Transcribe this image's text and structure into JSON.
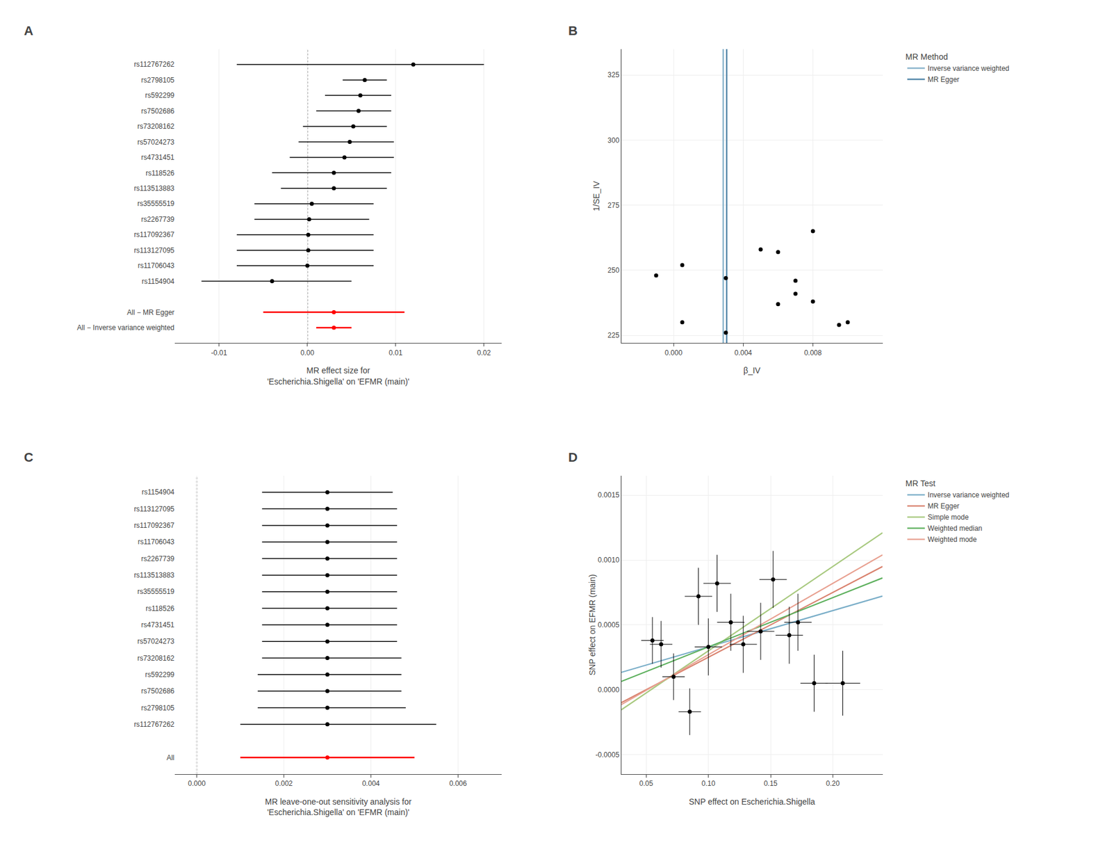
{
  "chart_data": [
    {
      "type": "forest",
      "title": "A",
      "xlabel": "MR effect size for\n'Escherichia.Shigella' on 'EFMR (main)'",
      "series": [
        {
          "categories": [
            "rs112767262",
            "rs2798105",
            "rs592299",
            "rs7502686",
            "rs73208162",
            "rs57024273",
            "rs4731451",
            "rs118526",
            "rs113513883",
            "rs35555519",
            "rs2267739",
            "rs117092367",
            "rs113127095",
            "rs11706043",
            "rs1154904"
          ],
          "values": [
            0.012,
            0.0065,
            0.006,
            0.0058,
            0.0052,
            0.0048,
            0.0042,
            0.003,
            0.003,
            0.0005,
            0.0002,
            0.0001,
            0.0001,
            0.0,
            -0.004
          ],
          "ci_low": [
            -0.008,
            0.004,
            0.002,
            0.001,
            -0.0005,
            -0.001,
            -0.002,
            -0.004,
            -0.003,
            -0.006,
            -0.006,
            -0.008,
            -0.008,
            -0.008,
            -0.012
          ],
          "ci_high": [
            0.02,
            0.009,
            0.0095,
            0.0095,
            0.009,
            0.0098,
            0.0098,
            0.0095,
            0.009,
            0.0075,
            0.007,
            0.0075,
            0.0075,
            0.0075,
            0.005
          ],
          "color": "black"
        },
        {
          "categories": [
            "All − MR Egger",
            "All − Inverse variance weighted"
          ],
          "values": [
            0.003,
            0.003
          ],
          "ci_low": [
            -0.005,
            0.001
          ],
          "ci_high": [
            0.011,
            0.005
          ],
          "color": "red"
        }
      ],
      "reference_x": 0,
      "xlim": [
        -0.015,
        0.022
      ],
      "xticks": [
        -0.01,
        {
          "value": 0,
          "label": "0.00"
        },
        0.01,
        0.02
      ],
      "grid": true
    },
    {
      "type": "scatter",
      "title": "B",
      "xlabel": "β_IV",
      "ylabel": "1/SE_IV",
      "x": [
        -0.001,
        0.0005,
        0.0005,
        0.003,
        0.003,
        0.005,
        0.006,
        0.006,
        0.007,
        0.007,
        0.008,
        0.008,
        0.0095,
        0.01
      ],
      "values": [
        248,
        252,
        230,
        247,
        226,
        258,
        257,
        237,
        246,
        241,
        265,
        238,
        229,
        230
      ],
      "color": "black",
      "series": [
        {
          "name": "Inverse variance weighted",
          "type": "vline",
          "x": 0.00285,
          "color": "#8ab4cc"
        },
        {
          "name": "MR Egger",
          "type": "vline",
          "x": 0.00305,
          "color": "#5588aa"
        }
      ],
      "legend_title": "MR Method",
      "legend": "right",
      "xlim": [
        -0.003,
        0.012
      ],
      "ylim": [
        222,
        335
      ],
      "xticks": [
        {
          "value": 0,
          "label": "0.000"
        },
        0.004,
        0.008
      ],
      "yticks": [
        225,
        250,
        275,
        300,
        325
      ],
      "grid": true
    },
    {
      "type": "forest",
      "title": "C",
      "xlabel": "MR leave-one-out sensitivity analysis for\n'Escherichia.Shigella' on 'EFMR (main)'",
      "series": [
        {
          "categories": [
            "rs1154904",
            "rs113127095",
            "rs117092367",
            "rs11706043",
            "rs2267739",
            "rs113513883",
            "rs35555519",
            "rs118526",
            "rs4731451",
            "rs57024273",
            "rs73208162",
            "rs592299",
            "rs7502686",
            "rs2798105",
            "rs112767262"
          ],
          "values": [
            0.003,
            0.003,
            0.003,
            0.003,
            0.003,
            0.003,
            0.003,
            0.003,
            0.003,
            0.003,
            0.003,
            0.003,
            0.003,
            0.003,
            0.003
          ],
          "ci_low": [
            0.0015,
            0.0015,
            0.0015,
            0.0015,
            0.0015,
            0.0015,
            0.0015,
            0.0015,
            0.0015,
            0.0015,
            0.0015,
            0.0014,
            0.0014,
            0.0014,
            0.001
          ],
          "ci_high": [
            0.0045,
            0.0046,
            0.0046,
            0.0046,
            0.0046,
            0.0046,
            0.0046,
            0.0046,
            0.0046,
            0.0046,
            0.0047,
            0.0047,
            0.0047,
            0.0048,
            0.0055
          ],
          "color": "black"
        },
        {
          "categories": [
            "All"
          ],
          "values": [
            0.003
          ],
          "ci_low": [
            0.001
          ],
          "ci_high": [
            0.005
          ],
          "color": "red"
        }
      ],
      "reference_x": 0,
      "xlim": [
        -0.0005,
        0.007
      ],
      "xticks": [
        {
          "value": 0,
          "label": "0.000"
        },
        0.002,
        0.004,
        0.006
      ],
      "grid": true
    },
    {
      "type": "scatter",
      "title": "D",
      "xlabel": "SNP effect on Escherichia.Shigella",
      "ylabel": "SNP effect on EFMR (main)",
      "x": [
        0.055,
        0.062,
        0.072,
        0.085,
        0.092,
        0.1,
        0.107,
        0.118,
        0.128,
        0.142,
        0.152,
        0.165,
        0.172,
        0.185,
        0.208
      ],
      "values": [
        0.00038,
        0.00035,
        0.0001,
        -0.00017,
        0.00072,
        0.00033,
        0.00082,
        0.00052,
        0.00035,
        0.00045,
        0.00085,
        0.00042,
        0.00052,
        5e-05,
        5e-05
      ],
      "x_err": [
        0.009,
        0.009,
        0.009,
        0.009,
        0.011,
        0.011,
        0.011,
        0.011,
        0.011,
        0.011,
        0.011,
        0.011,
        0.011,
        0.011,
        0.014
      ],
      "y_err": [
        0.00018,
        0.00018,
        0.00018,
        0.00018,
        0.00022,
        0.00022,
        0.00022,
        0.00022,
        0.00022,
        0.00022,
        0.00022,
        0.00022,
        0.00022,
        0.00022,
        0.00025
      ],
      "color": "black",
      "series": [
        {
          "name": "Inverse variance weighted",
          "type": "line",
          "color": "#7aaec8",
          "x": [
            0.03,
            0.24
          ],
          "values": [
            0.000134,
            0.000722
          ]
        },
        {
          "name": "MR Egger",
          "type": "line",
          "color": "#d9826e",
          "x": [
            0.03,
            0.24
          ],
          "values": [
            -0.0001,
            0.00095
          ]
        },
        {
          "name": "Simple mode",
          "type": "line",
          "color": "#a8c97f",
          "x": [
            0.03,
            0.24
          ],
          "values": [
            -0.000155,
            0.00121
          ]
        },
        {
          "name": "Weighted median",
          "type": "line",
          "color": "#5db05d",
          "x": [
            0.03,
            0.24
          ],
          "values": [
            6.4e-05,
            0.000862
          ]
        },
        {
          "name": "Weighted mode",
          "type": "line",
          "color": "#e8a090",
          "x": [
            0.03,
            0.24
          ],
          "values": [
            -0.000115,
            0.00104
          ]
        }
      ],
      "legend_title": "MR Test",
      "legend": "right",
      "xlim": [
        0.03,
        0.24
      ],
      "ylim": [
        -0.00065,
        0.00165
      ],
      "xticks": [
        0.05,
        {
          "value": 0.1,
          "label": "0.10"
        },
        0.15,
        {
          "value": 0.2,
          "label": "0.20"
        }
      ],
      "yticks": [
        -0.0005,
        {
          "value": 0,
          "label": "0.0000"
        },
        0.0005,
        {
          "value": 0.001,
          "label": "0.0010"
        },
        0.0015
      ],
      "grid": true
    }
  ]
}
